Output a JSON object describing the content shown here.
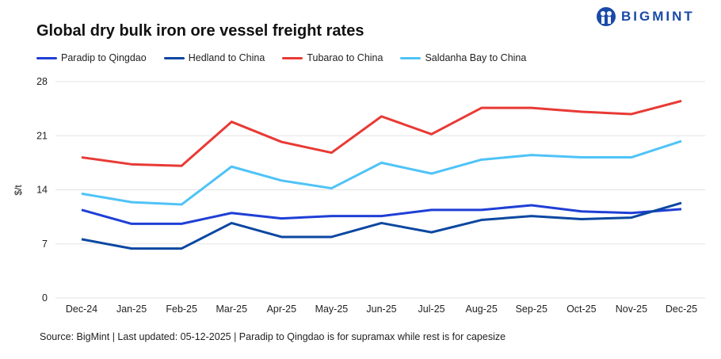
{
  "brand": {
    "name": "BIGMINT",
    "color": "#1a4aa8"
  },
  "chart_data": {
    "type": "line",
    "title": "Global dry bulk iron ore vessel freight rates",
    "ylabel": "$/t",
    "xlabel": "",
    "ylim": [
      0,
      28
    ],
    "yticks": [
      0,
      7,
      14,
      21,
      28
    ],
    "grid": true,
    "legend": "top-left",
    "categories": [
      "Dec-24",
      "Jan-25",
      "Feb-25",
      "Mar-25",
      "Apr-25",
      "May-25",
      "Jun-25",
      "Jul-25",
      "Aug-25",
      "Sep-25",
      "Oct-25",
      "Nov-25",
      "Dec-25"
    ],
    "series": [
      {
        "name": "Paradip to Qingdao",
        "color": "#1f3fd6",
        "values": [
          11.4,
          9.6,
          9.6,
          11.0,
          10.3,
          10.6,
          10.6,
          11.4,
          11.4,
          12.0,
          11.2,
          11.0,
          11.5
        ]
      },
      {
        "name": "Hedland to China",
        "color": "#0b47a1",
        "values": [
          7.6,
          6.4,
          6.4,
          9.7,
          7.9,
          7.9,
          9.7,
          8.5,
          10.1,
          10.6,
          10.2,
          10.4,
          12.3
        ]
      },
      {
        "name": "Tubarao to China",
        "color": "#e83a35",
        "values": [
          18.2,
          17.3,
          17.1,
          22.8,
          20.2,
          18.8,
          23.5,
          21.2,
          24.6,
          24.6,
          24.1,
          23.8,
          25.5
        ]
      },
      {
        "name": "Saldanha Bay to China",
        "color": "#4fc3f7",
        "values": [
          13.5,
          12.4,
          12.1,
          17.0,
          15.2,
          14.2,
          17.5,
          16.1,
          17.9,
          18.5,
          18.2,
          18.2,
          20.3
        ]
      }
    ]
  },
  "source": "Source: BigMint | Last updated: 05-12-2025 | Paradip to Qingdao is for supramax while rest is for capesize"
}
